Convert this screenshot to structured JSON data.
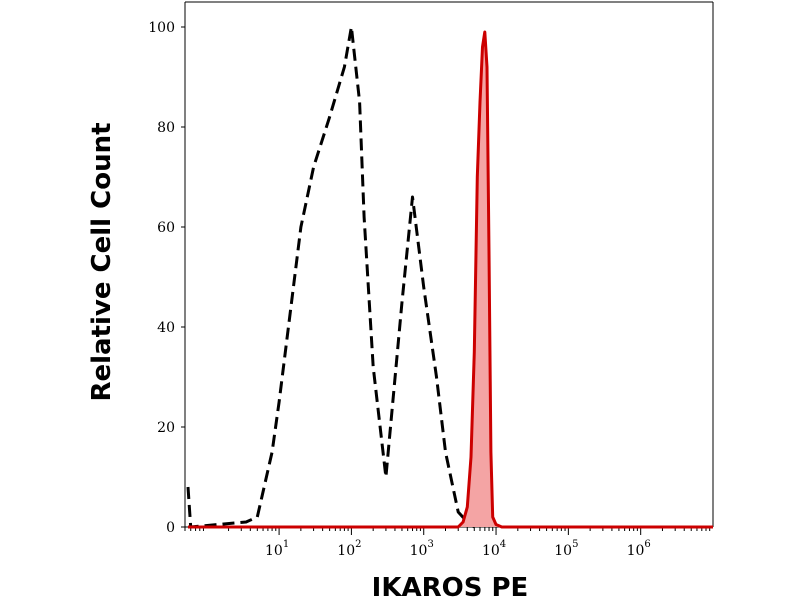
{
  "chart_data": {
    "type": "area",
    "xlabel": "IKAROS PE",
    "ylabel": "Relative Cell Count",
    "x_scale": "log",
    "xlim": [
      0.5,
      10000000
    ],
    "ylim": [
      0,
      105
    ],
    "x_ticks": [
      {
        "value": 10,
        "base": "10",
        "exp": "1"
      },
      {
        "value": 100,
        "base": "10",
        "exp": "2"
      },
      {
        "value": 1000,
        "base": "10",
        "exp": "3"
      },
      {
        "value": 10000,
        "base": "10",
        "exp": "4"
      },
      {
        "value": 100000,
        "base": "10",
        "exp": "5"
      },
      {
        "value": 1000000,
        "base": "10",
        "exp": "6"
      }
    ],
    "y_ticks": [
      0,
      20,
      40,
      60,
      80,
      100
    ],
    "series": [
      {
        "style": "dashed-line",
        "color": "#000000",
        "x": [
          0.55,
          0.6,
          3.5,
          5,
          8,
          10,
          20,
          30,
          50,
          80,
          100,
          130,
          150,
          200,
          300,
          500,
          700,
          1000,
          1500,
          2000,
          3000,
          4000,
          5000
        ],
        "y": [
          8,
          0,
          1,
          2,
          15,
          25,
          60,
          72,
          82,
          92,
          100,
          85,
          62,
          32,
          10,
          45,
          66,
          48,
          30,
          15,
          3,
          1,
          0
        ]
      },
      {
        "style": "filled-area",
        "color": "#cc0000",
        "fill": "#f4a4a4",
        "x": [
          0.55,
          3000,
          3500,
          4000,
          4500,
          5000,
          5500,
          6000,
          6500,
          7000,
          7500,
          8000,
          8500,
          9000,
          10000,
          12000,
          10000000
        ],
        "y": [
          0,
          0,
          1,
          4,
          14,
          35,
          70,
          85,
          96,
          99,
          92,
          55,
          15,
          2,
          0.5,
          0,
          0
        ]
      }
    ]
  }
}
